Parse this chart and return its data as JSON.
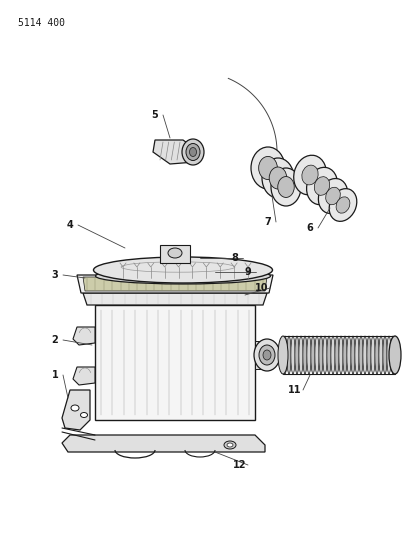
{
  "title": "5114 400",
  "bg": "#ffffff",
  "lc": "#1a1a1a",
  "lc2": "#444444",
  "lc3": "#888888",
  "figsize": [
    4.08,
    5.33
  ],
  "dpi": 100
}
